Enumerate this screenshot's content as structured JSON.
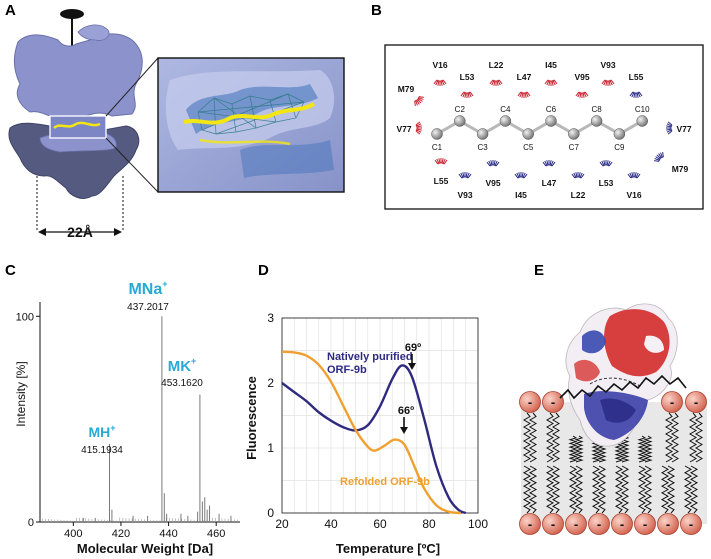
{
  "panels": {
    "A": {
      "letter": "A",
      "width_label": "22Å"
    },
    "B": {
      "letter": "B",
      "carbons": [
        "C1",
        "C2",
        "C3",
        "C4",
        "C5",
        "C6",
        "C7",
        "C8",
        "C9",
        "C10"
      ],
      "residues_top": [
        "V16",
        "L53",
        "L22",
        "L47",
        "I45",
        "V95",
        "V93",
        "L55"
      ],
      "residues_left": [
        "M79",
        "V77"
      ],
      "residues_right": [
        "V77",
        "M79"
      ],
      "residues_bottom": [
        "L55",
        "V93",
        "V95",
        "I45",
        "L47",
        "L22",
        "L53",
        "V16"
      ],
      "colors": {
        "chainA": "#c8202c",
        "chainB": "#2a2c88",
        "atom": "#909090"
      }
    },
    "C": {
      "letter": "C",
      "ylabel": "Intensity [%]",
      "xlabel": "Molecular Weight [Da]",
      "peak_labels": [
        {
          "ion": "MH",
          "charge": "+",
          "mz": "415.1934"
        },
        {
          "ion": "MNa",
          "charge": "+",
          "mz": "437.2017"
        },
        {
          "ion": "MK",
          "charge": "+",
          "mz": "453.1620"
        }
      ],
      "label_color": "#29a9d6"
    },
    "D": {
      "letter": "D",
      "ylabel": "Fluorescence",
      "xlabel": "Temperature [ºC]",
      "series_labels": [
        {
          "line1": "Natively purified",
          "line2": "ORF-9b",
          "color": "#2e2a80"
        },
        {
          "line1": "Refolded ORF-9b",
          "line2": "",
          "color": "#f0a030"
        }
      ],
      "annotations": [
        {
          "text": "69º"
        },
        {
          "text": "66º"
        }
      ]
    },
    "E": {
      "letter": "E",
      "headgroup_symbol": "-"
    }
  },
  "chart_data": [
    {
      "type": "bar",
      "title": "",
      "xlabel": "Molecular Weight [Da]",
      "ylabel": "Intensity [%]",
      "xlim": [
        386,
        470
      ],
      "ylim": [
        0,
        105
      ],
      "xticks": [
        400,
        420,
        440,
        460
      ],
      "yticks": [
        0,
        100
      ],
      "peaks": [
        {
          "x": 415.1934,
          "y": 38
        },
        {
          "x": 437.2017,
          "y": 100
        },
        {
          "x": 453.162,
          "y": 62
        },
        {
          "x": 416.2,
          "y": 6
        },
        {
          "x": 438.2,
          "y": 14
        },
        {
          "x": 439.2,
          "y": 4
        },
        {
          "x": 454.2,
          "y": 10
        },
        {
          "x": 455.2,
          "y": 12
        },
        {
          "x": 456.2,
          "y": 6
        },
        {
          "x": 457.2,
          "y": 8
        },
        {
          "x": 452.2,
          "y": 5
        },
        {
          "x": 425.1,
          "y": 3
        },
        {
          "x": 431.2,
          "y": 3
        },
        {
          "x": 445.2,
          "y": 4
        },
        {
          "x": 448.1,
          "y": 3
        },
        {
          "x": 461.2,
          "y": 4
        },
        {
          "x": 466.2,
          "y": 3
        },
        {
          "x": 404.2,
          "y": 2
        },
        {
          "x": 409.2,
          "y": 2
        }
      ]
    },
    {
      "type": "line",
      "title": "",
      "xlabel": "Temperature [ºC]",
      "ylabel": "Fluorescence",
      "xlim": [
        20,
        100
      ],
      "ylim": [
        0,
        3
      ],
      "xticks": [
        20,
        40,
        60,
        80,
        100
      ],
      "yticks": [
        0,
        1,
        2,
        3
      ],
      "grid": true,
      "series": [
        {
          "name": "Natively purified ORF-9b",
          "x": [
            20,
            25,
            30,
            35,
            40,
            45,
            50,
            55,
            60,
            65,
            69,
            73,
            78,
            83,
            88,
            92,
            95
          ],
          "y": [
            2.0,
            1.86,
            1.72,
            1.55,
            1.42,
            1.32,
            1.27,
            1.35,
            1.64,
            2.06,
            2.27,
            2.1,
            1.45,
            0.72,
            0.24,
            0.05,
            0.0
          ]
        },
        {
          "name": "Refolded ORF-9b",
          "x": [
            20,
            25,
            30,
            35,
            40,
            45,
            50,
            55,
            58,
            62,
            66,
            70,
            74,
            78,
            83,
            88,
            93
          ],
          "y": [
            2.48,
            2.47,
            2.42,
            2.28,
            2.02,
            1.65,
            1.28,
            1.02,
            0.96,
            1.04,
            1.13,
            1.05,
            0.72,
            0.38,
            0.12,
            0.02,
            0.0
          ]
        }
      ]
    }
  ]
}
